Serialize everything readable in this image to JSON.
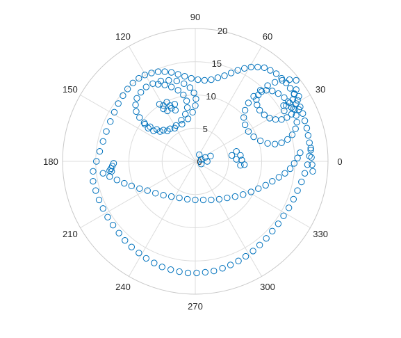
{
  "chart_data": {
    "type": "scatter",
    "polar": true,
    "marker": "circle-open",
    "series_color": "#0072BD",
    "grid": true,
    "angle_unit": "degrees",
    "r_lim": [
      0,
      20
    ],
    "r_ticks": [
      0,
      5,
      10,
      15,
      20
    ],
    "r_tick_labels": [
      "0",
      "5",
      "10",
      "15",
      "20"
    ],
    "r_tick_angle_deg": 80,
    "theta_ticks": [
      0,
      30,
      60,
      90,
      120,
      150,
      180,
      210,
      240,
      270,
      300,
      330
    ],
    "theta_tick_labels": [
      "0",
      "30",
      "60",
      "90",
      "120",
      "150",
      "180",
      "210",
      "240",
      "270",
      "300",
      "330"
    ],
    "segments": [
      {
        "part": "outer-top-arc",
        "x": [
          -15.4,
          -14.9,
          -14.4,
          -13.9,
          -13.4,
          -12.8,
          -12.2,
          -11.6,
          -10.9,
          -10.2,
          -9.4,
          -8.5,
          -7.6,
          -6.6,
          -5.6,
          -4.6,
          -3.6,
          -2.6,
          -1.6,
          -0.6,
          0.4,
          1.4,
          2.4,
          3.4,
          4.4,
          5.4,
          6.4,
          7.4,
          8.4,
          9.4,
          10.4,
          11.3,
          12.2,
          13.0,
          13.7,
          14.3,
          14.9,
          15.4,
          15.8,
          16.2,
          16.5,
          16.8,
          17.0,
          17.2,
          17.4,
          17.5,
          17.6,
          17.7
        ],
        "y": [
          -1.5,
          0.0,
          1.5,
          3.0,
          4.5,
          6.0,
          7.4,
          8.7,
          9.9,
          10.9,
          11.8,
          12.5,
          13.0,
          13.3,
          13.5,
          13.5,
          13.4,
          13.1,
          12.8,
          12.5,
          12.3,
          12.2,
          12.3,
          12.6,
          12.9,
          13.3,
          13.7,
          14.0,
          14.2,
          14.2,
          14.1,
          13.7,
          13.2,
          12.5,
          11.8,
          11.0,
          10.1,
          9.2,
          8.2,
          7.2,
          6.1,
          5.0,
          3.9,
          2.8,
          1.7,
          0.6,
          -0.5,
          -1.5
        ]
      },
      {
        "part": "mouth",
        "x": [
          -13.9,
          -12.9,
          -11.8,
          -10.7,
          -9.6,
          -8.4,
          -7.2,
          -6.0,
          -4.8,
          -3.6,
          -2.4,
          -1.2,
          0.0,
          1.2,
          2.4,
          3.6,
          4.8,
          6.0,
          7.2,
          8.4,
          9.5,
          10.6,
          11.6,
          12.6,
          13.5,
          14.3,
          14.9,
          15.4,
          15.8
        ],
        "y": [
          -1.8,
          -2.3,
          -2.8,
          -3.3,
          -3.7,
          -4.1,
          -4.4,
          -4.8,
          -5.1,
          -5.3,
          -5.5,
          -5.7,
          -5.8,
          -5.8,
          -5.8,
          -5.7,
          -5.5,
          -5.3,
          -5.0,
          -4.6,
          -4.1,
          -3.6,
          -3.0,
          -2.4,
          -1.8,
          -1.1,
          -0.3,
          0.5,
          1.3
        ]
      },
      {
        "part": "outer-bottom-arc",
        "x": [
          -15.4,
          -15.0,
          -14.5,
          -13.9,
          -13.2,
          -12.4,
          -11.5,
          -10.6,
          -9.6,
          -8.5,
          -7.4,
          -6.2,
          -5.0,
          -3.7,
          -2.4,
          -1.1,
          0.2,
          1.5,
          2.8,
          4.1,
          5.3,
          6.5,
          7.6,
          8.7,
          9.7,
          10.7,
          11.6,
          12.5,
          13.3,
          14.1,
          14.8,
          15.4,
          16.0,
          16.5,
          16.9,
          17.2,
          17.4
        ],
        "y": [
          -3.0,
          -4.4,
          -5.8,
          -7.1,
          -8.4,
          -9.6,
          -10.8,
          -11.9,
          -12.9,
          -13.8,
          -14.6,
          -15.3,
          -15.9,
          -16.3,
          -16.6,
          -16.8,
          -16.8,
          -16.7,
          -16.5,
          -16.1,
          -15.6,
          -15.0,
          -14.3,
          -13.5,
          -12.6,
          -11.6,
          -10.5,
          -9.4,
          -8.2,
          -7.0,
          -5.7,
          -4.4,
          -3.1,
          -1.8,
          -0.5,
          0.8,
          2.0
        ]
      },
      {
        "part": "left-eye-spiral",
        "x": [
          -5.6,
          -4.6,
          -3.6,
          -2.6,
          -1.8,
          -1.3,
          -1.2,
          -1.5,
          -2.1,
          -2.9,
          -3.8,
          -4.8,
          -5.8,
          -6.8,
          -7.7,
          -8.4,
          -8.9,
          -9.0,
          -8.8,
          -8.2,
          -7.4,
          -6.4,
          -5.2,
          -4.0,
          -2.8,
          -1.7,
          -0.8,
          -0.2,
          0.1,
          0.0,
          -0.4,
          -1.1,
          -2.0,
          -3.1,
          -4.2,
          -5.3,
          -6.3,
          -7.1,
          -7.6
        ],
        "y": [
          11.6,
          11.5,
          11.2,
          10.7,
          10.0,
          9.1,
          8.1,
          7.1,
          6.2,
          5.4,
          4.9,
          4.7,
          4.8,
          5.2,
          5.8,
          6.6,
          7.5,
          8.5,
          9.5,
          10.4,
          11.2,
          11.7,
          12.1,
          12.2,
          12.1,
          11.7,
          11.1,
          10.3,
          9.4,
          8.4,
          7.4,
          6.4,
          5.6,
          5.0,
          4.6,
          4.5,
          4.6,
          5.0,
          5.6
        ]
      },
      {
        "part": "left-eye-center",
        "x": [
          -3.8,
          -4.8,
          -4.3,
          -3.6,
          -4.8,
          -3.1,
          -5.4,
          -3.0,
          -4.2
        ],
        "y": [
          8.4,
          8.4,
          8.9,
          8.0,
          7.9,
          8.6,
          8.6,
          7.7,
          7.6
        ]
      },
      {
        "part": "right-eye-spiral",
        "x": [
          15.2,
          14.2,
          13.1,
          12.0,
          10.9,
          9.8,
          8.8,
          8.0,
          7.5,
          7.3,
          7.5,
          8.0,
          8.8,
          9.8,
          10.9,
          12.0,
          13.0,
          13.9,
          14.6,
          15.1,
          15.3,
          15.2,
          14.8,
          14.2,
          13.4,
          12.5,
          11.6,
          10.7,
          10.0,
          9.5,
          9.2,
          9.3,
          9.7,
          10.4,
          11.2,
          12.1,
          13.0,
          13.8,
          14.5,
          15.0
        ],
        "y": [
          12.2,
          12.3,
          12.2,
          11.9,
          11.4,
          10.7,
          9.8,
          8.8,
          7.7,
          6.6,
          5.5,
          4.5,
          3.7,
          3.1,
          2.7,
          2.6,
          2.8,
          3.3,
          4.0,
          4.9,
          5.9,
          6.9,
          7.9,
          8.8,
          9.6,
          10.2,
          10.6,
          10.7,
          10.5,
          10.0,
          9.3,
          8.5,
          7.7,
          7.0,
          6.5,
          6.3,
          6.3,
          6.6,
          7.1,
          7.8
        ]
      },
      {
        "part": "right-eye-center",
        "x": [
          13.3,
          14.0,
          13.7,
          14.5,
          13.4,
          14.7,
          15.2,
          14.9,
          15.6,
          15.2,
          15.6
        ],
        "y": [
          8.4,
          9.0,
          8.4,
          8.1,
          7.6,
          9.3,
          10.8,
          10.2,
          9.8,
          8.7,
          7.8
        ]
      },
      {
        "part": "nose-left",
        "x": [
          0.6,
          1.5,
          2.3,
          0.9,
          1.8,
          0.9
        ],
        "y": [
          1.0,
          0.6,
          0.8,
          -0.4,
          0.0,
          0.3
        ]
      },
      {
        "part": "nose-right",
        "x": [
          5.5,
          6.2,
          6.8,
          6.2,
          7.0,
          6.8,
          7.4
        ],
        "y": [
          0.9,
          1.5,
          0.9,
          0.3,
          0.2,
          -0.6,
          -0.5
        ]
      },
      {
        "part": "left-loop",
        "x": [
          -12.6,
          -12.5,
          -12.7,
          -12.3,
          -12.9
        ],
        "y": [
          -1.5,
          -0.7,
          -1.1,
          -0.3,
          -1.4
        ]
      }
    ]
  }
}
